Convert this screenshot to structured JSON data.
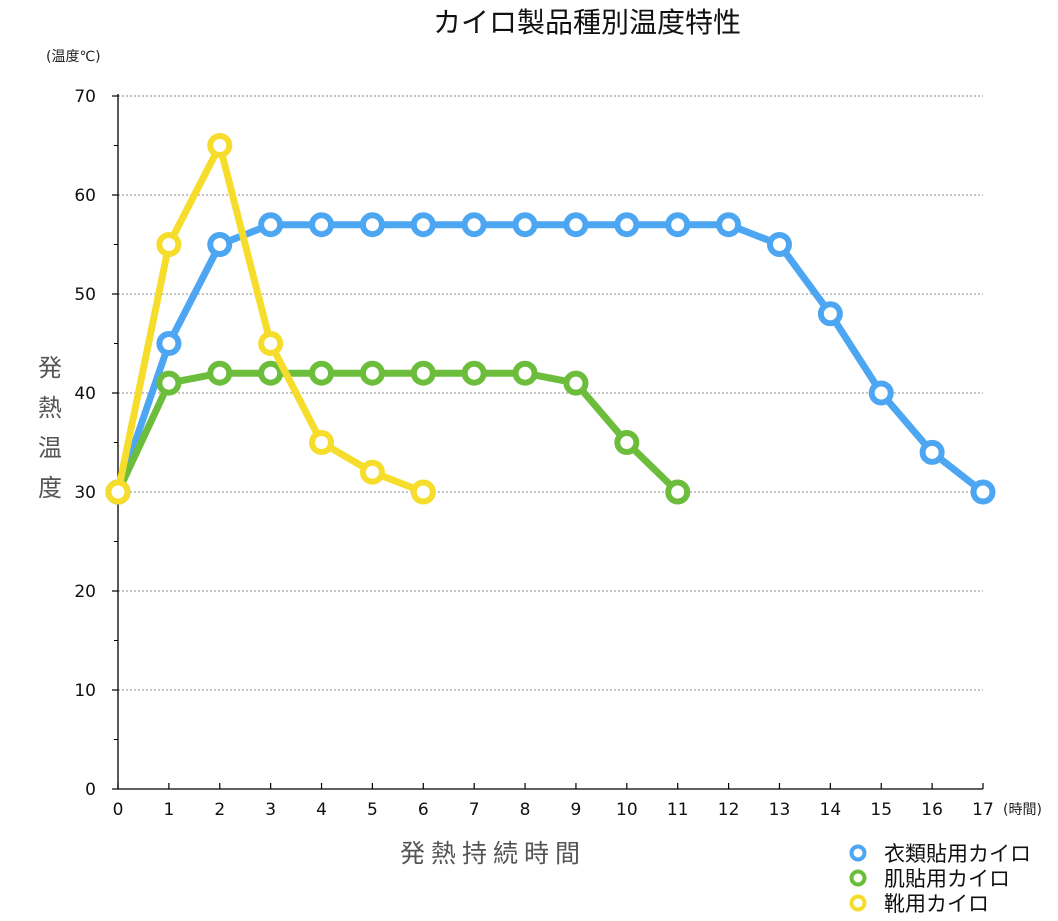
{
  "chart_data": {
    "type": "line",
    "title": "カイロ製品種別温度特性",
    "y_unit": "(温度℃)",
    "x_unit": "(時間)",
    "ylabel": "発熱温度",
    "xlabel": "発熱持続時間",
    "xlim": [
      0,
      17
    ],
    "ylim": [
      0,
      70
    ],
    "x_ticks": [
      "0",
      "1",
      "2",
      "3",
      "4",
      "5",
      "6",
      "7",
      "8",
      "9",
      "10",
      "11",
      "12",
      "13",
      "14",
      "15",
      "16",
      "17"
    ],
    "y_ticks": [
      "0",
      "10",
      "20",
      "30",
      "40",
      "50",
      "60",
      "70"
    ],
    "grid": true,
    "legend_position": "bottom-right",
    "series": [
      {
        "name": "衣類貼用カイロ",
        "color": "#4da6f2",
        "x": [
          0,
          1,
          2,
          3,
          4,
          5,
          6,
          7,
          8,
          9,
          10,
          11,
          12,
          13,
          14,
          15,
          16,
          17
        ],
        "values": [
          30,
          45,
          55,
          57,
          57,
          57,
          57,
          57,
          57,
          57,
          57,
          57,
          57,
          55,
          48,
          40,
          34,
          30
        ]
      },
      {
        "name": "肌貼用カイロ",
        "color": "#6dbd3c",
        "x": [
          0,
          1,
          2,
          3,
          4,
          5,
          6,
          7,
          8,
          9,
          10,
          11
        ],
        "values": [
          30,
          41,
          42,
          42,
          42,
          42,
          42,
          42,
          42,
          41,
          35,
          30
        ]
      },
      {
        "name": "靴用カイロ",
        "color": "#f6dd2b",
        "x": [
          0,
          1,
          2,
          3,
          4,
          5,
          6
        ],
        "values": [
          30,
          55,
          65,
          45,
          35,
          32,
          30
        ]
      }
    ]
  }
}
